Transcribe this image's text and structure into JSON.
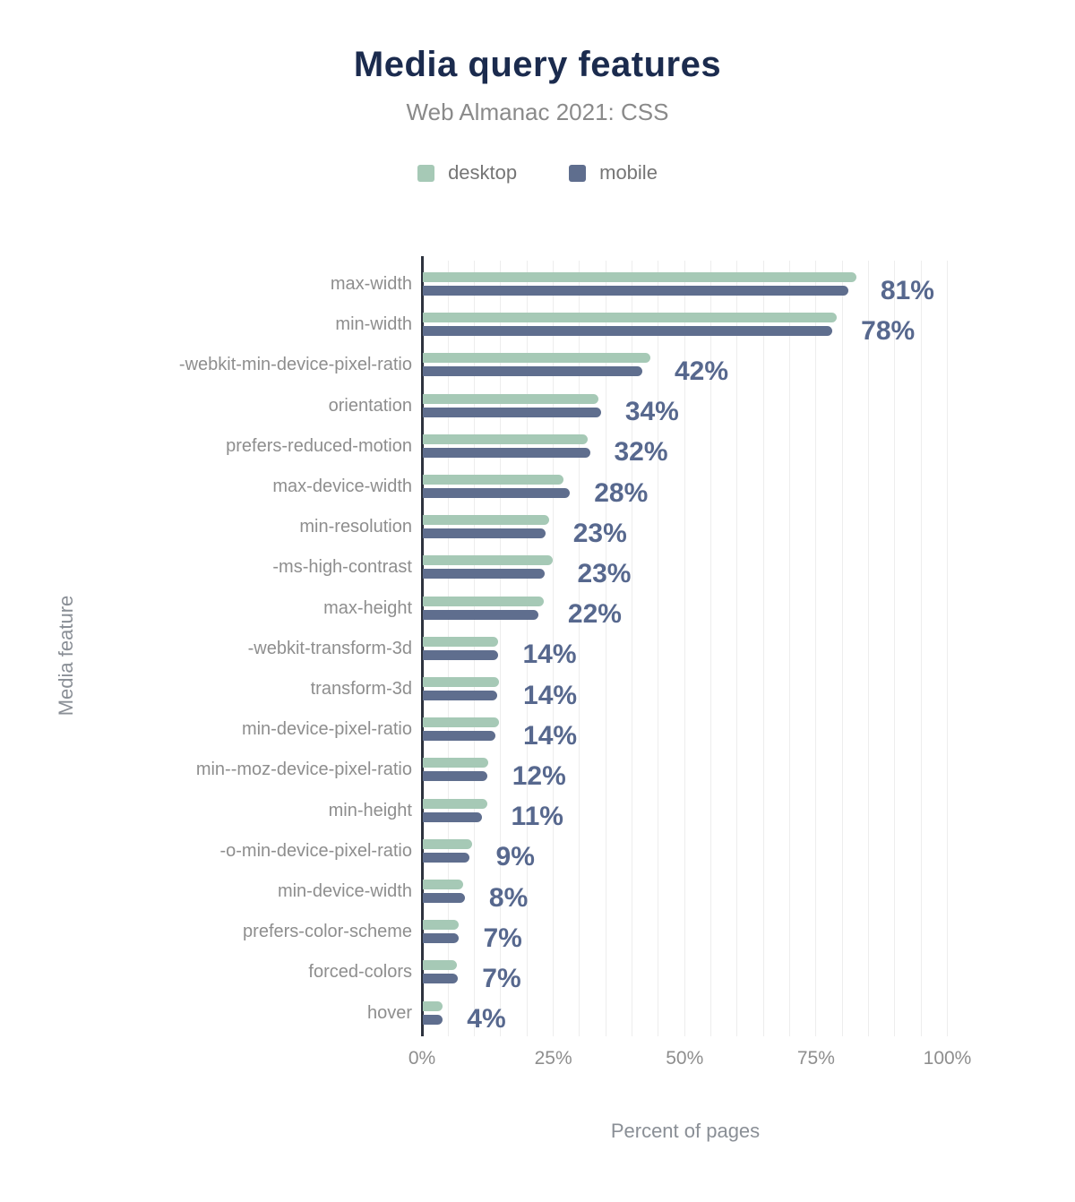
{
  "header": {
    "title": "Media query features",
    "subtitle": "Web Almanac 2021: CSS"
  },
  "legend": [
    {
      "label": "desktop",
      "color": "#a6c9b6"
    },
    {
      "label": "mobile",
      "color": "#5f6e8e"
    }
  ],
  "axes": {
    "y_title": "Media feature",
    "x_title": "Percent of pages",
    "x_ticks": [
      "0%",
      "25%",
      "50%",
      "75%",
      "100%"
    ]
  },
  "colors": {
    "title": "#1b2b4e",
    "subtitle": "#8a8a8a",
    "desktop_bar": "#a6c9b6",
    "mobile_bar": "#5f6e8e",
    "value_label": "#57688e",
    "axis_line": "#2d323e",
    "gridline": "#ededed",
    "category_label": "#8e8e8e"
  },
  "chart_data": {
    "type": "bar",
    "orientation": "horizontal",
    "title": "Media query features",
    "subtitle": "Web Almanac 2021: CSS",
    "xlabel": "Percent of pages",
    "ylabel": "Media feature",
    "xlim": [
      0,
      100
    ],
    "grid": "vertical, every 5%",
    "legend_position": "top center",
    "categories": [
      "max-width",
      "min-width",
      "-webkit-min-device-pixel-ratio",
      "orientation",
      "prefers-reduced-motion",
      "max-device-width",
      "min-resolution",
      "-ms-high-contrast",
      "max-height",
      "-webkit-transform-3d",
      "transform-3d",
      "min-device-pixel-ratio",
      "min--moz-device-pixel-ratio",
      "min-height",
      "-o-min-device-pixel-ratio",
      "min-device-width",
      "prefers-color-scheme",
      "forced-colors",
      "hover"
    ],
    "series": [
      {
        "name": "desktop",
        "values": [
          82.5,
          78.8,
          43.3,
          33.4,
          31.4,
          26.7,
          24.0,
          24.8,
          23.0,
          14.4,
          14.5,
          14.5,
          12.4,
          12.2,
          9.3,
          7.7,
          6.9,
          6.5,
          3.8
        ]
      },
      {
        "name": "mobile",
        "values": [
          81.0,
          77.9,
          41.7,
          33.9,
          31.8,
          28.0,
          23.3,
          23.2,
          22.0,
          14.3,
          14.2,
          13.8,
          12.2,
          11.3,
          8.9,
          8.0,
          6.9,
          6.7,
          3.7
        ]
      }
    ],
    "value_labels": [
      "81%",
      "78%",
      "42%",
      "34%",
      "32%",
      "28%",
      "23%",
      "23%",
      "22%",
      "14%",
      "14%",
      "14%",
      "12%",
      "11%",
      "9%",
      "8%",
      "7%",
      "7%",
      "4%"
    ]
  }
}
